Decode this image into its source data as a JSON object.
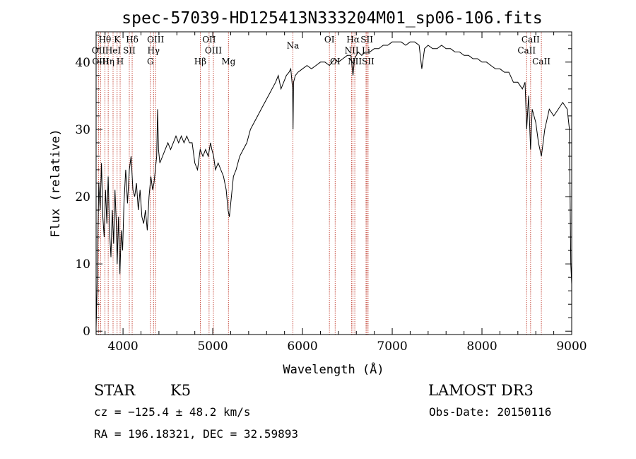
{
  "chart_data": {
    "type": "line",
    "title": "spec-57039-HD125413N333204M01_sp06-106.fits",
    "xlabel": "Wavelength (Å)",
    "ylabel": "Flux (relative)",
    "xlim": [
      3700,
      9000
    ],
    "ylim": [
      -0.5,
      44.5
    ],
    "xticks": [
      4000,
      5000,
      6000,
      7000,
      8000,
      9000
    ],
    "yticks": [
      0,
      10,
      20,
      30,
      40
    ],
    "grid": false,
    "series": [
      {
        "points": [
          [
            3700,
            0.5
          ],
          [
            3710,
            6
          ],
          [
            3720,
            14
          ],
          [
            3730,
            22
          ],
          [
            3745,
            18
          ],
          [
            3760,
            25
          ],
          [
            3775,
            17
          ],
          [
            3790,
            14
          ],
          [
            3805,
            21
          ],
          [
            3820,
            16
          ],
          [
            3835,
            23
          ],
          [
            3850,
            15
          ],
          [
            3865,
            11
          ],
          [
            3880,
            18
          ],
          [
            3895,
            13
          ],
          [
            3910,
            21
          ],
          [
            3925,
            16
          ],
          [
            3935,
            10
          ],
          [
            3950,
            17
          ],
          [
            3965,
            8.5
          ],
          [
            3980,
            15
          ],
          [
            3995,
            12
          ],
          [
            4010,
            19
          ],
          [
            4030,
            24
          ],
          [
            4050,
            19
          ],
          [
            4070,
            24
          ],
          [
            4090,
            26
          ],
          [
            4110,
            21
          ],
          [
            4130,
            20
          ],
          [
            4150,
            22
          ],
          [
            4170,
            18
          ],
          [
            4190,
            21
          ],
          [
            4210,
            17
          ],
          [
            4230,
            16
          ],
          [
            4250,
            18
          ],
          [
            4270,
            15
          ],
          [
            4290,
            20
          ],
          [
            4310,
            23
          ],
          [
            4330,
            21
          ],
          [
            4345,
            22
          ],
          [
            4360,
            24
          ],
          [
            4375,
            26
          ],
          [
            4385,
            33
          ],
          [
            4395,
            27
          ],
          [
            4410,
            25
          ],
          [
            4440,
            26
          ],
          [
            4470,
            27
          ],
          [
            4500,
            28
          ],
          [
            4530,
            27
          ],
          [
            4560,
            28
          ],
          [
            4590,
            29
          ],
          [
            4620,
            28
          ],
          [
            4650,
            29
          ],
          [
            4680,
            28
          ],
          [
            4710,
            29
          ],
          [
            4740,
            28
          ],
          [
            4770,
            28
          ],
          [
            4800,
            25
          ],
          [
            4830,
            24
          ],
          [
            4860,
            27
          ],
          [
            4890,
            26
          ],
          [
            4920,
            27
          ],
          [
            4950,
            26
          ],
          [
            4975,
            28
          ],
          [
            4990,
            27
          ],
          [
            5010,
            26
          ],
          [
            5030,
            24
          ],
          [
            5060,
            25
          ],
          [
            5090,
            24
          ],
          [
            5120,
            23
          ],
          [
            5150,
            21
          ],
          [
            5170,
            18
          ],
          [
            5185,
            17
          ],
          [
            5200,
            19
          ],
          [
            5230,
            23
          ],
          [
            5260,
            24
          ],
          [
            5300,
            26
          ],
          [
            5340,
            27
          ],
          [
            5380,
            28
          ],
          [
            5420,
            30
          ],
          [
            5460,
            31
          ],
          [
            5500,
            32
          ],
          [
            5540,
            33
          ],
          [
            5580,
            34
          ],
          [
            5620,
            35
          ],
          [
            5660,
            36
          ],
          [
            5700,
            37
          ],
          [
            5730,
            38
          ],
          [
            5760,
            36
          ],
          [
            5790,
            37
          ],
          [
            5820,
            38
          ],
          [
            5850,
            38.5
          ],
          [
            5870,
            39
          ],
          [
            5890,
            36
          ],
          [
            5895,
            30
          ],
          [
            5900,
            37
          ],
          [
            5920,
            38
          ],
          [
            5950,
            38.5
          ],
          [
            6000,
            39
          ],
          [
            6050,
            39.5
          ],
          [
            6100,
            39
          ],
          [
            6150,
            39.5
          ],
          [
            6200,
            40
          ],
          [
            6250,
            40
          ],
          [
            6300,
            39.5
          ],
          [
            6330,
            40
          ],
          [
            6360,
            40.5
          ],
          [
            6400,
            40
          ],
          [
            6450,
            40.5
          ],
          [
            6500,
            41
          ],
          [
            6540,
            41
          ],
          [
            6563,
            38
          ],
          [
            6580,
            40.5
          ],
          [
            6620,
            41.5
          ],
          [
            6660,
            41
          ],
          [
            6700,
            41.5
          ],
          [
            6750,
            41.5
          ],
          [
            6800,
            42
          ],
          [
            6850,
            42
          ],
          [
            6900,
            42.5
          ],
          [
            6950,
            42.5
          ],
          [
            7000,
            43
          ],
          [
            7050,
            43
          ],
          [
            7100,
            43
          ],
          [
            7150,
            42.5
          ],
          [
            7200,
            43
          ],
          [
            7250,
            43
          ],
          [
            7300,
            42.5
          ],
          [
            7330,
            39
          ],
          [
            7360,
            42
          ],
          [
            7400,
            42.5
          ],
          [
            7450,
            42
          ],
          [
            7500,
            42
          ],
          [
            7550,
            42.5
          ],
          [
            7600,
            42
          ],
          [
            7650,
            42
          ],
          [
            7700,
            41.5
          ],
          [
            7750,
            41.5
          ],
          [
            7800,
            41
          ],
          [
            7850,
            41
          ],
          [
            7900,
            40.5
          ],
          [
            7950,
            40.5
          ],
          [
            8000,
            40
          ],
          [
            8050,
            40
          ],
          [
            8100,
            39.5
          ],
          [
            8150,
            39
          ],
          [
            8200,
            39
          ],
          [
            8250,
            38.5
          ],
          [
            8300,
            38.5
          ],
          [
            8350,
            37
          ],
          [
            8400,
            37
          ],
          [
            8450,
            36
          ],
          [
            8480,
            37
          ],
          [
            8498,
            30
          ],
          [
            8520,
            35
          ],
          [
            8542,
            27
          ],
          [
            8560,
            33
          ],
          [
            8600,
            31
          ],
          [
            8630,
            28
          ],
          [
            8662,
            26
          ],
          [
            8700,
            30
          ],
          [
            8750,
            33
          ],
          [
            8800,
            32
          ],
          [
            8850,
            33
          ],
          [
            8900,
            34
          ],
          [
            8950,
            33
          ],
          [
            8975,
            30
          ],
          [
            8990,
            10
          ],
          [
            9000,
            7
          ]
        ]
      }
    ],
    "line_markers": [
      {
        "label": "Hθ",
        "x": 3798,
        "row": 1
      },
      {
        "label": "K",
        "x": 3934,
        "row": 1
      },
      {
        "label": "Hδ",
        "x": 4102,
        "row": 1
      },
      {
        "label": "OIII",
        "x": 4363,
        "row": 1
      },
      {
        "label": "OII",
        "x": 4959,
        "row": 1
      },
      {
        "label": "OI",
        "x": 6300,
        "row": 1
      },
      {
        "label": "Hα",
        "x": 6563,
        "row": 1
      },
      {
        "label": "SII",
        "x": 6717,
        "row": 1
      },
      {
        "label": "CaII",
        "x": 8542,
        "row": 1
      },
      {
        "label": "OII",
        "x": 3727,
        "row": 2
      },
      {
        "label": "HeI",
        "x": 3889,
        "row": 2
      },
      {
        "label": "SII",
        "x": 4070,
        "row": 2
      },
      {
        "label": "Hγ",
        "x": 4340,
        "row": 2
      },
      {
        "label": "OIII",
        "x": 5007,
        "row": 2
      },
      {
        "label": "NII",
        "x": 6548,
        "row": 2
      },
      {
        "label": "Li",
        "x": 6708,
        "row": 2
      },
      {
        "label": "CaII",
        "x": 8498,
        "row": 2
      },
      {
        "label": "OIII",
        "x": 3750,
        "row": 3
      },
      {
        "label": "Hη",
        "x": 3835,
        "row": 3
      },
      {
        "label": "H",
        "x": 3968,
        "row": 3
      },
      {
        "label": "G",
        "x": 4305,
        "row": 3
      },
      {
        "label": "Hβ",
        "x": 4861,
        "row": 3
      },
      {
        "label": "Mg",
        "x": 5175,
        "row": 3
      },
      {
        "label": "Na",
        "x": 5893,
        "row": 1.55
      },
      {
        "label": "OI",
        "x": 6364,
        "row": 3
      },
      {
        "label": "NII",
        "x": 6583,
        "row": 3
      },
      {
        "label": "SII",
        "x": 6731,
        "row": 3
      },
      {
        "label": "CaII",
        "x": 8662,
        "row": 3
      }
    ],
    "info": {
      "object_class": "STAR",
      "subclass": "K5",
      "survey": "LAMOST DR3",
      "cz": "cz = −125.4 ± 48.2 km/s",
      "obs_date": "Obs-Date: 20150116",
      "coords": "RA = 196.18321, DEC =  32.59893"
    }
  }
}
